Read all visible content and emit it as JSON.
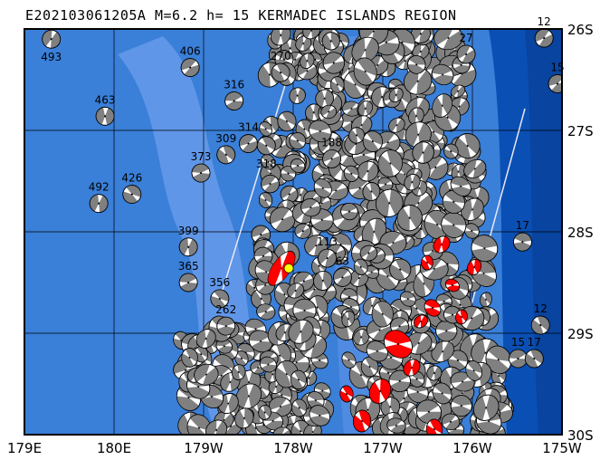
{
  "title": "E202103061205A M=6.2 h= 15 KERMADEC ISLANDS REGION",
  "map": {
    "lon_range_east": [
      179,
      185
    ],
    "lat_range": [
      -26,
      -30
    ],
    "lon_ticks": [
      "179E",
      "180E",
      "179W",
      "178W",
      "177W",
      "176W",
      "175W"
    ],
    "lat_ticks": [
      "26S",
      "27S",
      "28S",
      "29S",
      "30S"
    ]
  },
  "colors": {
    "ocean_deep": "#0a4fb4",
    "ocean_mid": "#3a7fd8",
    "ocean_shallow": "#6f9ff0",
    "compression_gray": "#808080",
    "mainshock_red": "#ff0000",
    "epicenter_yellow": "#ffff00"
  },
  "mainshock": {
    "lon": 181.95,
    "lat": -28.36,
    "depth": 15,
    "magnitude": 6.2
  },
  "labeled_events": [
    {
      "depth": "493",
      "lon": 179.3,
      "lat": -26.1
    },
    {
      "depth": "406",
      "lon": 180.85,
      "lat": -26.38
    },
    {
      "depth": "463",
      "lon": 179.9,
      "lat": -26.86
    },
    {
      "depth": "316",
      "lon": 181.34,
      "lat": -26.71
    },
    {
      "depth": "270",
      "lon": 181.86,
      "lat": -26.43
    },
    {
      "depth": "314",
      "lon": 181.5,
      "lat": -27.13
    },
    {
      "depth": "318",
      "lon": 181.7,
      "lat": -27.15
    },
    {
      "depth": "309",
      "lon": 181.25,
      "lat": -27.24
    },
    {
      "depth": "373",
      "lon": 180.97,
      "lat": -27.42
    },
    {
      "depth": "492",
      "lon": 179.83,
      "lat": -27.72
    },
    {
      "depth": "426",
      "lon": 180.2,
      "lat": -27.63
    },
    {
      "depth": "399",
      "lon": 180.83,
      "lat": -28.15
    },
    {
      "depth": "365",
      "lon": 180.83,
      "lat": -28.5
    },
    {
      "depth": "356",
      "lon": 181.18,
      "lat": -28.66
    },
    {
      "depth": "262",
      "lon": 181.25,
      "lat": -28.93
    },
    {
      "depth": "188",
      "lon": 182.43,
      "lat": -27.28
    },
    {
      "depth": "113",
      "lon": 182.38,
      "lat": -28.26
    },
    {
      "depth": "63",
      "lon": 182.55,
      "lat": -28.45
    },
    {
      "depth": "27",
      "lon": 183.93,
      "lat": -26.25
    },
    {
      "depth": "12",
      "lon": 184.8,
      "lat": -26.09
    },
    {
      "depth": "15",
      "lon": 184.95,
      "lat": -26.54
    },
    {
      "depth": "17",
      "lon": 184.56,
      "lat": -28.1
    },
    {
      "depth": "12",
      "lon": 184.76,
      "lat": -28.92
    },
    {
      "depth": "15",
      "lon": 184.51,
      "lat": -29.25
    },
    {
      "depth": "17",
      "lon": 184.69,
      "lat": -29.25
    }
  ]
}
